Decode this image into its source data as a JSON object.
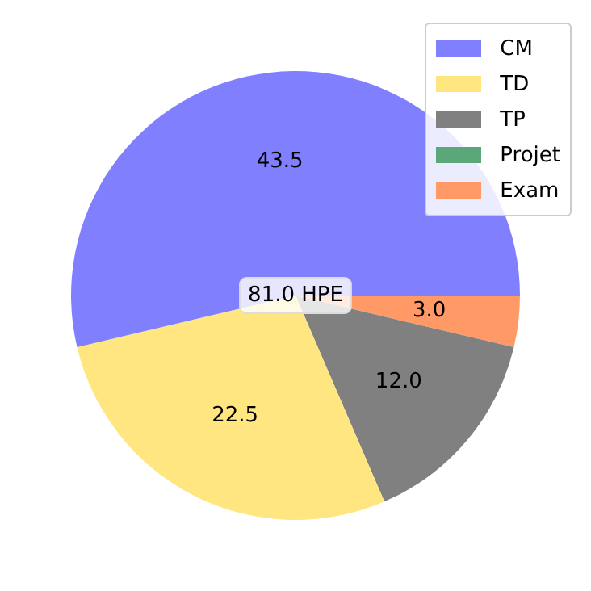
{
  "chart_data": {
    "type": "pie",
    "categories": [
      "CM",
      "TD",
      "TP",
      "Projet",
      "Exam"
    ],
    "values": [
      43.5,
      22.5,
      12.0,
      0,
      3.0
    ],
    "colors": [
      "#8080ff",
      "#ffe680",
      "#808080",
      "#5aa87a",
      "#ff9966"
    ],
    "value_labels": [
      "43.5",
      "22.5",
      "12.0",
      null,
      "3.0"
    ],
    "annotations": [
      "81.0 HPE"
    ],
    "legend": "top right"
  }
}
